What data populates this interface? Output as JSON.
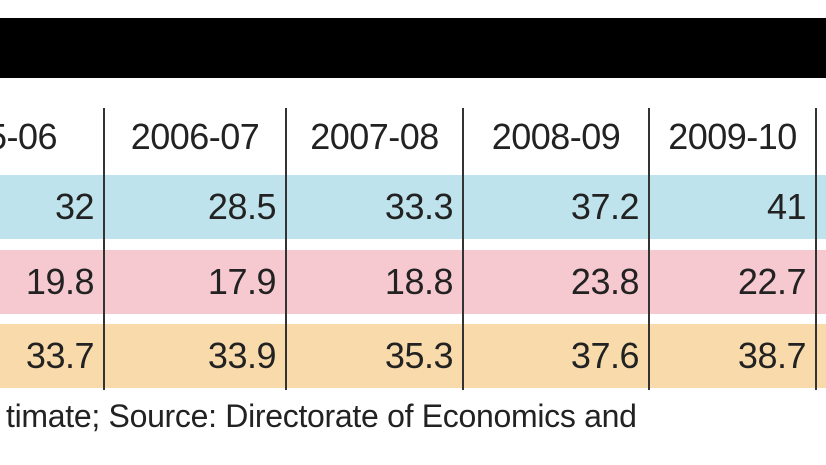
{
  "table": {
    "header": [
      "5-06",
      "2006-07",
      "2007-08",
      "2008-09",
      "2009-10"
    ],
    "rows": [
      [
        32,
        28.5,
        33.3,
        37.2,
        41
      ],
      [
        19.8,
        17.9,
        18.8,
        23.8,
        22.7
      ],
      [
        33.7,
        33.9,
        35.3,
        37.6,
        38.7
      ]
    ]
  },
  "footer": "timate; Source: Directorate of Economics and"
}
